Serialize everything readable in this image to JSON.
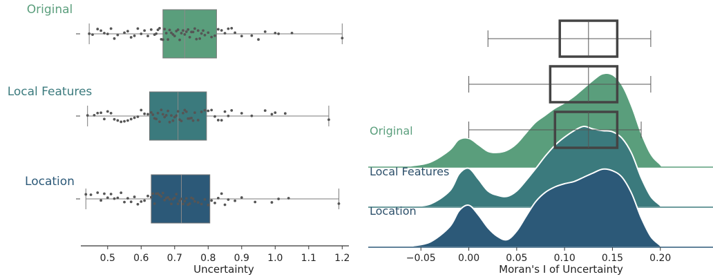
{
  "chart_data": [
    {
      "type": "box",
      "xlabel": "Uncertainty",
      "xlim": [
        0.42,
        1.22
      ],
      "xticks": [
        0.5,
        0.6,
        0.7,
        0.8,
        0.9,
        1.0,
        1.1,
        1.2
      ],
      "tick_labels": [
        "0.5",
        "0.6",
        "0.7",
        "0.8",
        "0.9",
        "1.0",
        "1.1",
        "1.2"
      ],
      "legend": "none",
      "grid": false,
      "series": [
        {
          "name": "Original",
          "color": "#5a9e7c",
          "min": 0.445,
          "q1": 0.665,
          "median": 0.73,
          "q3": 0.825,
          "max": 1.2,
          "points": [
            0.445,
            0.455,
            0.47,
            0.48,
            0.49,
            0.5,
            0.51,
            0.52,
            0.53,
            0.55,
            0.56,
            0.57,
            0.58,
            0.59,
            0.6,
            0.61,
            0.62,
            0.63,
            0.64,
            0.645,
            0.65,
            0.655,
            0.66,
            0.665,
            0.67,
            0.675,
            0.68,
            0.685,
            0.69,
            0.695,
            0.7,
            0.705,
            0.71,
            0.715,
            0.72,
            0.725,
            0.73,
            0.735,
            0.74,
            0.745,
            0.75,
            0.755,
            0.76,
            0.765,
            0.77,
            0.775,
            0.78,
            0.785,
            0.79,
            0.8,
            0.81,
            0.82,
            0.83,
            0.84,
            0.85,
            0.86,
            0.87,
            0.88,
            0.9,
            0.93,
            0.95,
            0.97,
            1.0,
            1.01,
            1.05,
            1.2
          ]
        },
        {
          "name": "Local Features",
          "color": "#3b7a7d",
          "min": 0.44,
          "q1": 0.625,
          "median": 0.71,
          "q3": 0.795,
          "max": 1.16,
          "points": [
            0.44,
            0.46,
            0.47,
            0.48,
            0.49,
            0.5,
            0.51,
            0.52,
            0.53,
            0.54,
            0.55,
            0.56,
            0.57,
            0.58,
            0.59,
            0.6,
            0.61,
            0.62,
            0.63,
            0.635,
            0.64,
            0.645,
            0.65,
            0.655,
            0.66,
            0.665,
            0.67,
            0.675,
            0.68,
            0.685,
            0.69,
            0.695,
            0.7,
            0.705,
            0.71,
            0.715,
            0.72,
            0.725,
            0.73,
            0.735,
            0.74,
            0.745,
            0.75,
            0.755,
            0.76,
            0.77,
            0.78,
            0.79,
            0.8,
            0.81,
            0.82,
            0.83,
            0.84,
            0.85,
            0.86,
            0.87,
            0.9,
            0.93,
            0.97,
            0.99,
            1.0,
            1.03,
            1.16
          ]
        },
        {
          "name": "Location",
          "color": "#2c5978",
          "min": 0.435,
          "q1": 0.63,
          "median": 0.72,
          "q3": 0.805,
          "max": 1.19,
          "points": [
            0.435,
            0.45,
            0.47,
            0.48,
            0.49,
            0.5,
            0.51,
            0.52,
            0.53,
            0.54,
            0.55,
            0.56,
            0.57,
            0.58,
            0.59,
            0.6,
            0.61,
            0.62,
            0.63,
            0.635,
            0.64,
            0.645,
            0.65,
            0.655,
            0.66,
            0.665,
            0.67,
            0.675,
            0.68,
            0.685,
            0.69,
            0.695,
            0.7,
            0.705,
            0.71,
            0.715,
            0.72,
            0.725,
            0.73,
            0.735,
            0.74,
            0.745,
            0.75,
            0.755,
            0.76,
            0.77,
            0.78,
            0.79,
            0.8,
            0.81,
            0.82,
            0.83,
            0.84,
            0.85,
            0.86,
            0.88,
            0.9,
            0.94,
            0.99,
            1.01,
            1.04,
            1.19
          ]
        }
      ]
    },
    {
      "type": "area",
      "subtype": "ridgeline",
      "xlabel": "Moran's I of Uncertainty",
      "xlim": [
        -0.105,
        0.255
      ],
      "xticks": [
        -0.05,
        0.0,
        0.05,
        0.1,
        0.15,
        0.2
      ],
      "tick_labels": [
        "−0.05",
        "0.00",
        "0.05",
        "0.10",
        "0.15",
        "0.20"
      ],
      "legend": "none",
      "grid": false,
      "series": [
        {
          "name": "Original",
          "color": "#5a9e7c",
          "density": {
            "x": [
              -0.06,
              -0.04,
              -0.02,
              -0.01,
              0.0,
              0.01,
              0.02,
              0.03,
              0.04,
              0.05,
              0.06,
              0.07,
              0.08,
              0.09,
              0.1,
              0.11,
              0.12,
              0.13,
              0.14,
              0.15,
              0.16,
              0.17,
              0.18,
              0.19,
              0.2
            ],
            "y": [
              0.01,
              0.08,
              0.3,
              0.5,
              0.52,
              0.4,
              0.28,
              0.26,
              0.3,
              0.42,
              0.62,
              0.82,
              0.95,
              1.08,
              1.18,
              1.3,
              1.45,
              1.6,
              1.72,
              1.7,
              1.5,
              1.1,
              0.6,
              0.22,
              0.03
            ]
          },
          "box": {
            "min": 0.02,
            "q1": 0.095,
            "median": 0.125,
            "q3": 0.155,
            "max": 0.19
          }
        },
        {
          "name": "Local Features",
          "color": "#3b7a7d",
          "density": {
            "x": [
              -0.06,
              -0.04,
              -0.02,
              -0.01,
              0.0,
              0.01,
              0.02,
              0.03,
              0.04,
              0.05,
              0.06,
              0.07,
              0.08,
              0.09,
              0.1,
              0.11,
              0.12,
              0.13,
              0.14,
              0.15,
              0.16,
              0.17,
              0.18,
              0.19,
              0.2
            ],
            "y": [
              0.01,
              0.06,
              0.3,
              0.62,
              0.72,
              0.52,
              0.3,
              0.22,
              0.2,
              0.3,
              0.5,
              0.72,
              0.95,
              1.15,
              1.3,
              1.42,
              1.5,
              1.45,
              1.42,
              1.4,
              1.28,
              1.0,
              0.55,
              0.2,
              0.03
            ]
          },
          "box": {
            "min": 0.0,
            "q1": 0.085,
            "median": 0.125,
            "q3": 0.155,
            "max": 0.19
          }
        },
        {
          "name": "Location",
          "color": "#2c5978",
          "density": {
            "x": [
              -0.06,
              -0.04,
              -0.02,
              -0.01,
              0.0,
              0.01,
              0.02,
              0.03,
              0.04,
              0.05,
              0.06,
              0.07,
              0.08,
              0.09,
              0.1,
              0.11,
              0.12,
              0.13,
              0.14,
              0.15,
              0.16,
              0.17,
              0.18,
              0.19,
              0.2
            ],
            "y": [
              0.02,
              0.1,
              0.38,
              0.68,
              0.78,
              0.6,
              0.36,
              0.2,
              0.14,
              0.3,
              0.58,
              0.85,
              1.02,
              1.12,
              1.18,
              1.22,
              1.3,
              1.38,
              1.45,
              1.42,
              1.3,
              1.0,
              0.55,
              0.2,
              0.03
            ]
          },
          "box": {
            "min": 0.0,
            "q1": 0.09,
            "median": 0.125,
            "q3": 0.155,
            "max": 0.18
          }
        }
      ]
    }
  ]
}
